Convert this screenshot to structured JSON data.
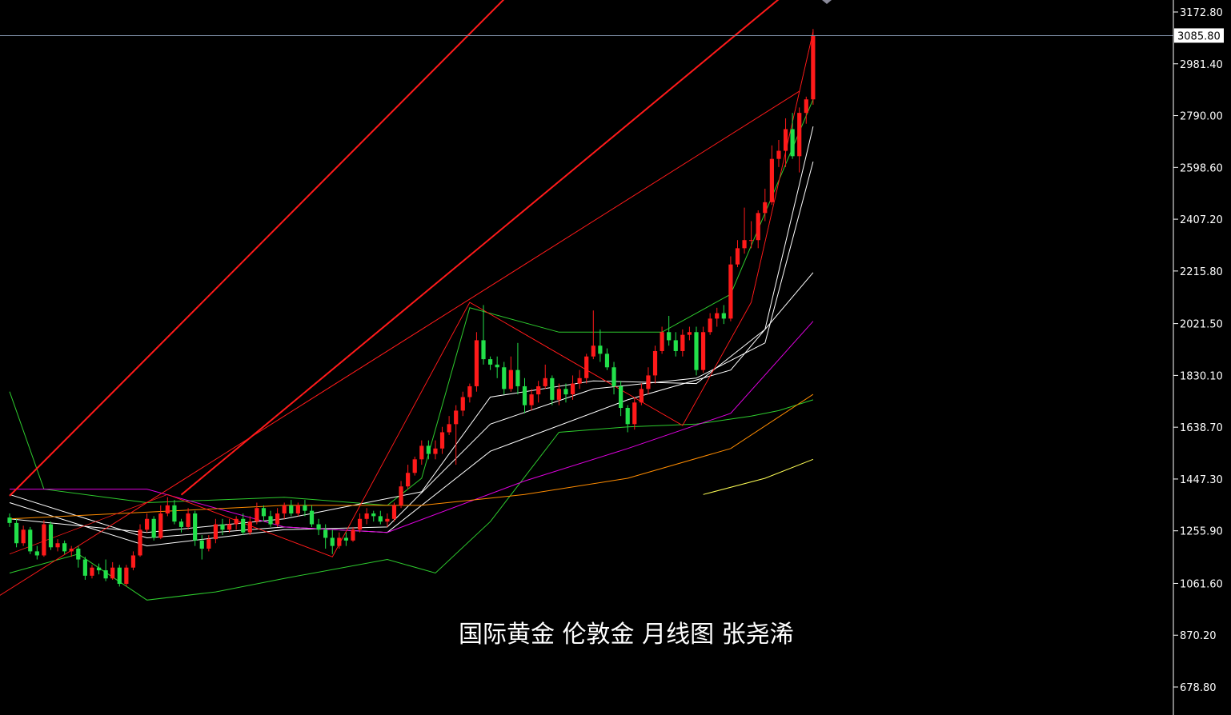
{
  "chart_data": {
    "type": "candlestick",
    "caption": "国际黄金 伦敦金 月线图 张尧浠",
    "y_axis": {
      "ticks": [
        "3172.80",
        "2981.40",
        "2790.00",
        "2598.60",
        "2407.20",
        "2215.80",
        "2021.50",
        "1830.10",
        "1638.70",
        "1447.30",
        "1255.90",
        "1061.60",
        "870.20",
        "678.80"
      ],
      "tick_values": [
        3172.8,
        2981.4,
        2790.0,
        2598.6,
        2407.2,
        2215.8,
        2021.5,
        1830.1,
        1638.7,
        1447.3,
        1255.9,
        1061.6,
        870.2,
        678.8
      ],
      "ylim": [
        655,
        3220
      ]
    },
    "last_price": {
      "label": "3085.80",
      "value": 3085.8
    },
    "colors": {
      "up": "#ff1a1a",
      "down": "#22e04a",
      "channel": "#ff1a1a",
      "ma_white": "#ffffff",
      "bollinger": "#2ecc2e",
      "ma_magenta": "#e000e0",
      "ma_orange": "#ff8c00",
      "ma_yellow": "#ffff55",
      "axis": "#ffffff",
      "price_line": "#7a8aa0"
    },
    "candles": [
      [
        1305,
        1285,
        1320,
        1270
      ],
      [
        1285,
        1210,
        1300,
        1195
      ],
      [
        1210,
        1260,
        1275,
        1200
      ],
      [
        1260,
        1180,
        1270,
        1170
      ],
      [
        1180,
        1165,
        1200,
        1150
      ],
      [
        1165,
        1280,
        1295,
        1160
      ],
      [
        1280,
        1195,
        1290,
        1185
      ],
      [
        1195,
        1210,
        1225,
        1180
      ],
      [
        1210,
        1180,
        1220,
        1170
      ],
      [
        1180,
        1190,
        1200,
        1160
      ],
      [
        1190,
        1150,
        1200,
        1120
      ],
      [
        1150,
        1090,
        1160,
        1075
      ],
      [
        1090,
        1120,
        1130,
        1080
      ],
      [
        1120,
        1110,
        1135,
        1095
      ],
      [
        1110,
        1080,
        1150,
        1070
      ],
      [
        1080,
        1120,
        1140,
        1075
      ],
      [
        1120,
        1060,
        1130,
        1050
      ],
      [
        1060,
        1120,
        1130,
        1050
      ],
      [
        1120,
        1165,
        1180,
        1110
      ],
      [
        1165,
        1260,
        1280,
        1160
      ],
      [
        1260,
        1300,
        1320,
        1250
      ],
      [
        1300,
        1230,
        1310,
        1220
      ],
      [
        1230,
        1320,
        1350,
        1225
      ],
      [
        1320,
        1350,
        1380,
        1310
      ],
      [
        1350,
        1290,
        1370,
        1280
      ],
      [
        1290,
        1270,
        1300,
        1250
      ],
      [
        1270,
        1320,
        1340,
        1260
      ],
      [
        1320,
        1220,
        1330,
        1200
      ],
      [
        1220,
        1190,
        1240,
        1150
      ],
      [
        1190,
        1225,
        1240,
        1180
      ],
      [
        1225,
        1280,
        1300,
        1210
      ],
      [
        1280,
        1260,
        1300,
        1240
      ],
      [
        1260,
        1280,
        1300,
        1250
      ],
      [
        1280,
        1300,
        1310,
        1260
      ],
      [
        1300,
        1250,
        1320,
        1240
      ],
      [
        1250,
        1290,
        1310,
        1240
      ],
      [
        1290,
        1340,
        1360,
        1280
      ],
      [
        1340,
        1310,
        1350,
        1290
      ],
      [
        1310,
        1280,
        1330,
        1270
      ],
      [
        1280,
        1320,
        1340,
        1270
      ],
      [
        1320,
        1350,
        1360,
        1300
      ],
      [
        1350,
        1320,
        1370,
        1310
      ],
      [
        1320,
        1350,
        1360,
        1310
      ],
      [
        1350,
        1330,
        1370,
        1310
      ],
      [
        1330,
        1280,
        1350,
        1270
      ],
      [
        1280,
        1260,
        1300,
        1240
      ],
      [
        1260,
        1230,
        1280,
        1190
      ],
      [
        1230,
        1200,
        1260,
        1170
      ],
      [
        1200,
        1230,
        1250,
        1190
      ],
      [
        1230,
        1220,
        1250,
        1200
      ],
      [
        1220,
        1260,
        1270,
        1215
      ],
      [
        1260,
        1300,
        1320,
        1250
      ],
      [
        1300,
        1320,
        1340,
        1280
      ],
      [
        1320,
        1310,
        1330,
        1290
      ],
      [
        1310,
        1290,
        1330,
        1280
      ],
      [
        1290,
        1300,
        1320,
        1270
      ],
      [
        1300,
        1350,
        1360,
        1290
      ],
      [
        1350,
        1420,
        1440,
        1340
      ],
      [
        1420,
        1470,
        1500,
        1410
      ],
      [
        1470,
        1520,
        1530,
        1460
      ],
      [
        1520,
        1570,
        1590,
        1500
      ],
      [
        1570,
        1540,
        1590,
        1520
      ],
      [
        1540,
        1560,
        1590,
        1520
      ],
      [
        1560,
        1620,
        1640,
        1540
      ],
      [
        1620,
        1650,
        1680,
        1610
      ],
      [
        1650,
        1700,
        1720,
        1500
      ],
      [
        1700,
        1750,
        1770,
        1680
      ],
      [
        1750,
        1790,
        1800,
        1730
      ],
      [
        1790,
        1960,
        1990,
        1770
      ],
      [
        1960,
        1890,
        2090,
        1870
      ],
      [
        1890,
        1870,
        1900,
        1850
      ],
      [
        1870,
        1860,
        1900,
        1820
      ],
      [
        1860,
        1780,
        1880,
        1760
      ],
      [
        1780,
        1850,
        1900,
        1770
      ],
      [
        1850,
        1790,
        1950,
        1760
      ],
      [
        1790,
        1720,
        1820,
        1690
      ],
      [
        1720,
        1760,
        1780,
        1700
      ],
      [
        1760,
        1790,
        1810,
        1730
      ],
      [
        1790,
        1820,
        1870,
        1780
      ],
      [
        1820,
        1740,
        1830,
        1720
      ],
      [
        1740,
        1780,
        1800,
        1720
      ],
      [
        1780,
        1760,
        1800,
        1730
      ],
      [
        1760,
        1800,
        1830,
        1740
      ],
      [
        1800,
        1820,
        1850,
        1780
      ],
      [
        1820,
        1900,
        1910,
        1800
      ],
      [
        1900,
        1940,
        2070,
        1890
      ],
      [
        1940,
        1910,
        2000,
        1880
      ],
      [
        1910,
        1860,
        1930,
        1850
      ],
      [
        1860,
        1790,
        1880,
        1760
      ],
      [
        1790,
        1710,
        1810,
        1680
      ],
      [
        1710,
        1650,
        1720,
        1620
      ],
      [
        1650,
        1730,
        1750,
        1630
      ],
      [
        1730,
        1780,
        1800,
        1720
      ],
      [
        1780,
        1830,
        1860,
        1760
      ],
      [
        1830,
        1920,
        1940,
        1800
      ],
      [
        1920,
        1990,
        2010,
        1910
      ],
      [
        1990,
        1960,
        2050,
        1940
      ],
      [
        1960,
        1920,
        1990,
        1900
      ],
      [
        1920,
        1980,
        2000,
        1900
      ],
      [
        1980,
        1990,
        2010,
        1960
      ],
      [
        1990,
        1850,
        2010,
        1830
      ],
      [
        1850,
        1990,
        2010,
        1840
      ],
      [
        1990,
        2040,
        2060,
        1980
      ],
      [
        2040,
        2060,
        2080,
        2010
      ],
      [
        2060,
        2040,
        2090,
        2020
      ],
      [
        2040,
        2240,
        2270,
        2030
      ],
      [
        2240,
        2300,
        2330,
        2230
      ],
      [
        2300,
        2330,
        2450,
        2280
      ],
      [
        2330,
        2330,
        2400,
        2300
      ],
      [
        2330,
        2430,
        2440,
        2300
      ],
      [
        2430,
        2470,
        2520,
        2400
      ],
      [
        2470,
        2630,
        2680,
        2460
      ],
      [
        2630,
        2660,
        2700,
        2600
      ],
      [
        2660,
        2740,
        2780,
        2600
      ],
      [
        2740,
        2640,
        2800,
        2630
      ],
      [
        2640,
        2800,
        2820,
        2580
      ],
      [
        2800,
        2850,
        2860,
        2760
      ],
      [
        2850,
        3085.8,
        3110,
        2830
      ]
    ],
    "channel_lines": [
      [
        [
          0,
          1385
        ],
        [
          72,
          3220
        ]
      ],
      [
        [
          25,
          1389
        ],
        [
          112,
          3220
        ]
      ],
      [
        [
          -25,
          640
        ],
        [
          115,
          2880
        ]
      ]
    ],
    "zigzag_lines": [
      [
        [
          0,
          1170
        ],
        [
          23,
          1390
        ],
        [
          47,
          1160
        ],
        [
          67,
          2100
        ],
        [
          98,
          1645
        ],
        [
          108,
          2100
        ],
        [
          117,
          3100
        ]
      ],
      [
        [
          23,
          1390
        ],
        [
          47,
          1160
        ],
        [
          67,
          2100
        ],
        [
          98,
          1645
        ],
        [
          108,
          2100
        ],
        [
          117,
          3100
        ]
      ]
    ],
    "ma_lines": [
      {
        "color": "#ffffff",
        "points": [
          [
            0,
            1300
          ],
          [
            20,
            1250
          ],
          [
            40,
            1300
          ],
          [
            60,
            1400
          ],
          [
            70,
            1750
          ],
          [
            85,
            1810
          ],
          [
            100,
            1800
          ],
          [
            110,
            2000
          ],
          [
            117,
            2750
          ]
        ]
      },
      {
        "color": "#ffffff",
        "points": [
          [
            0,
            1360
          ],
          [
            20,
            1200
          ],
          [
            40,
            1260
          ],
          [
            55,
            1270
          ],
          [
            70,
            1650
          ],
          [
            85,
            1780
          ],
          [
            100,
            1820
          ],
          [
            110,
            1950
          ],
          [
            117,
            2620
          ]
        ]
      },
      {
        "color": "#ffffff",
        "points": [
          [
            0,
            1390
          ],
          [
            20,
            1230
          ],
          [
            40,
            1270
          ],
          [
            55,
            1250
          ],
          [
            70,
            1550
          ],
          [
            90,
            1740
          ],
          [
            105,
            1850
          ],
          [
            117,
            2210
          ]
        ]
      },
      {
        "color": "#e000e0",
        "points": [
          [
            0,
            1410
          ],
          [
            20,
            1410
          ],
          [
            40,
            1270
          ],
          [
            55,
            1250
          ],
          [
            75,
            1440
          ],
          [
            90,
            1560
          ],
          [
            105,
            1690
          ],
          [
            117,
            2030
          ]
        ]
      },
      {
        "color": "#ff8c00",
        "points": [
          [
            0,
            1300
          ],
          [
            40,
            1350
          ],
          [
            60,
            1350
          ],
          [
            75,
            1390
          ],
          [
            90,
            1450
          ],
          [
            105,
            1560
          ],
          [
            117,
            1760
          ]
        ]
      },
      {
        "color": "#ffff55",
        "points": [
          [
            101,
            1390
          ],
          [
            110,
            1450
          ],
          [
            117,
            1520
          ]
        ]
      }
    ],
    "bollinger_upper": [
      [
        0,
        1770
      ],
      [
        5,
        1410
      ],
      [
        20,
        1360
      ],
      [
        40,
        1380
      ],
      [
        55,
        1350
      ],
      [
        60,
        1450
      ],
      [
        67,
        2080
      ],
      [
        80,
        1990
      ],
      [
        95,
        1990
      ],
      [
        105,
        2130
      ],
      [
        117,
        2850
      ]
    ],
    "bollinger_lower": [
      [
        0,
        1100
      ],
      [
        10,
        1170
      ],
      [
        20,
        1000
      ],
      [
        30,
        1030
      ],
      [
        40,
        1080
      ],
      [
        55,
        1150
      ],
      [
        62,
        1100
      ],
      [
        70,
        1290
      ],
      [
        80,
        1620
      ],
      [
        90,
        1640
      ],
      [
        100,
        1650
      ],
      [
        108,
        1680
      ],
      [
        112,
        1700
      ],
      [
        117,
        1740
      ]
    ]
  }
}
